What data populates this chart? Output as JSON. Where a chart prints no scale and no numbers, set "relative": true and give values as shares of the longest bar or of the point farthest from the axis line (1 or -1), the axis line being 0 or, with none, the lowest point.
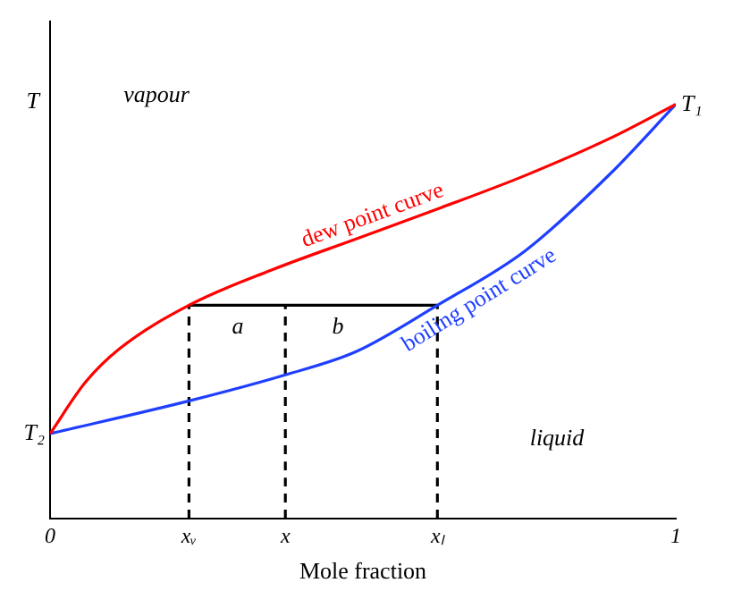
{
  "chart_data": {
    "type": "line",
    "relative": true,
    "xlabel": "Mole fraction",
    "ylabel": "T",
    "xlim": [
      0,
      1
    ],
    "xticks": [
      0,
      {
        "value": 0.222,
        "label": "xᵥ"
      },
      {
        "value": 0.376,
        "label": "x"
      },
      {
        "value": 0.619,
        "label": "xₗ"
      },
      1
    ],
    "series": [
      {
        "name": "dew point curve",
        "color": "#ff0000",
        "x": [
          0,
          0.057,
          0.111,
          0.222,
          0.354,
          0.489,
          0.624,
          0.759,
          0.895,
          1
        ],
        "values": [
          0.205,
          0.33,
          0.41,
          0.515,
          0.6,
          0.675,
          0.75,
          0.828,
          0.918,
          1
        ]
      },
      {
        "name": "boiling point curve",
        "color": "#1f3fff",
        "x": [
          0,
          0.222,
          0.376,
          0.489,
          0.619,
          0.759,
          0.895,
          1
        ],
        "values": [
          0.205,
          0.284,
          0.347,
          0.403,
          0.515,
          0.646,
          0.832,
          1
        ]
      },
      {
        "color": "#000000",
        "x": [
          0.222,
          0.619
        ],
        "values": [
          0.515,
          0.515
        ]
      },
      {
        "color": "#000000",
        "line_style": "dashed",
        "x": [
          0.222,
          0.222
        ],
        "values": [
          0,
          0.515
        ]
      },
      {
        "color": "#000000",
        "line_style": "dashed",
        "x": [
          0.376,
          0.376
        ],
        "values": [
          0,
          0.515
        ]
      },
      {
        "color": "#000000",
        "line_style": "dashed",
        "x": [
          0.619,
          0.619
        ],
        "values": [
          0,
          0.515
        ]
      }
    ],
    "annotations": [
      {
        "text": "T₁",
        "x": 1,
        "y": 1
      },
      {
        "text": "T₂",
        "x": 0,
        "y": 0.205
      },
      "vapour",
      "liquid",
      "a",
      "b"
    ],
    "marker": "none",
    "grid": false,
    "legend": false
  }
}
